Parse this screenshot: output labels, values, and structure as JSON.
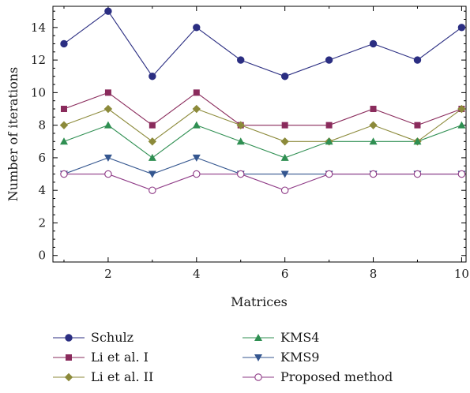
{
  "chart_data": {
    "type": "line",
    "title": "",
    "xlabel": "Matrices",
    "ylabel": "Number of iterations",
    "x": [
      1,
      2,
      3,
      4,
      5,
      6,
      7,
      8,
      9,
      10
    ],
    "xlim": [
      0.75,
      10.1
    ],
    "ylim": [
      -0.4,
      15.3
    ],
    "xticks": [
      2,
      4,
      6,
      8,
      10
    ],
    "yticks": [
      0,
      2,
      4,
      6,
      8,
      10,
      12,
      14
    ],
    "grid": false,
    "legend_position": "bottom",
    "series": [
      {
        "name": "Schulz",
        "values": [
          13,
          15,
          11,
          14,
          12,
          11,
          12,
          13,
          12,
          14
        ],
        "color": "#2b2e82",
        "marker": "filled-circle"
      },
      {
        "name": "Li et al. I",
        "values": [
          9,
          10,
          8,
          10,
          8,
          8,
          8,
          9,
          8,
          9
        ],
        "color": "#8a2b5c",
        "marker": "filled-square"
      },
      {
        "name": "Li et al. II",
        "values": [
          8,
          9,
          7,
          9,
          8,
          7,
          7,
          8,
          7,
          9
        ],
        "color": "#8c8a3a",
        "marker": "filled-diamond"
      },
      {
        "name": "KMS4",
        "values": [
          7,
          8,
          6,
          8,
          7,
          6,
          7,
          7,
          7,
          8
        ],
        "color": "#2f8f52",
        "marker": "filled-triangle-up"
      },
      {
        "name": "KMS9",
        "values": [
          5,
          6,
          5,
          6,
          5,
          5,
          5,
          5,
          5,
          5
        ],
        "color": "#34568f",
        "marker": "filled-triangle-down"
      },
      {
        "name": "Proposed method",
        "values": [
          5,
          5,
          4,
          5,
          5,
          4,
          5,
          5,
          5,
          5
        ],
        "color": "#8e3a86",
        "marker": "open-circle"
      }
    ]
  }
}
